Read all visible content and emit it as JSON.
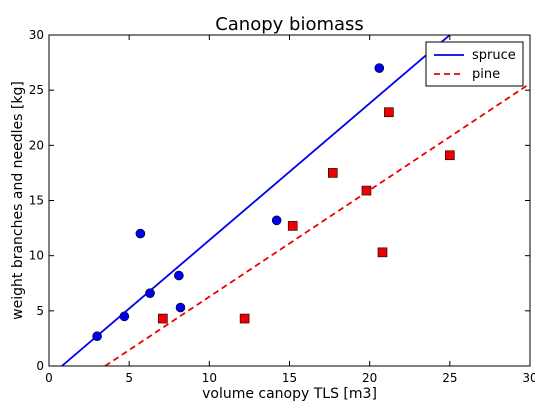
{
  "chart_data": {
    "type": "scatter",
    "title": "Canopy biomass",
    "xlabel": "volume canopy TLS [m3]",
    "ylabel": "weight branches and needles [kg]",
    "xlim": [
      0,
      30
    ],
    "ylim": [
      0,
      30
    ],
    "x_ticks": [
      "0",
      "5",
      "10",
      "15",
      "20",
      "25",
      "30"
    ],
    "y_ticks": [
      "0",
      "5",
      "10",
      "15",
      "20",
      "25",
      "30"
    ],
    "grid": false,
    "legend_position": "top-right",
    "series": [
      {
        "name": "spruce",
        "kind": "points",
        "marker": "circle",
        "color": "#0000ee",
        "points": [
          [
            3.0,
            2.7
          ],
          [
            4.7,
            4.5
          ],
          [
            5.7,
            12.0
          ],
          [
            6.3,
            6.6
          ],
          [
            8.1,
            8.2
          ],
          [
            8.2,
            5.3
          ],
          [
            14.2,
            13.2
          ],
          [
            20.6,
            27.0
          ]
        ]
      },
      {
        "name": "pine",
        "kind": "points",
        "marker": "square",
        "color": "#ee0000",
        "points": [
          [
            7.1,
            4.3
          ],
          [
            12.2,
            4.3
          ],
          [
            15.2,
            12.7
          ],
          [
            17.7,
            17.5
          ],
          [
            19.8,
            15.9
          ],
          [
            20.8,
            10.3
          ],
          [
            21.2,
            23.0
          ],
          [
            25.0,
            19.1
          ]
        ]
      },
      {
        "name": "spruce",
        "kind": "fit-line",
        "style": "solid",
        "color": "#0000ee",
        "points": [
          [
            0.8,
            0
          ],
          [
            25.0,
            30.0
          ]
        ]
      },
      {
        "name": "pine",
        "kind": "fit-line",
        "style": "dashed",
        "color": "#ee0000",
        "points": [
          [
            3.5,
            0
          ],
          [
            30.0,
            25.6
          ]
        ]
      }
    ],
    "legend": [
      {
        "label": "spruce",
        "style": "solid",
        "color": "#0000ee"
      },
      {
        "label": "pine",
        "style": "dashed",
        "color": "#ee0000"
      }
    ]
  }
}
